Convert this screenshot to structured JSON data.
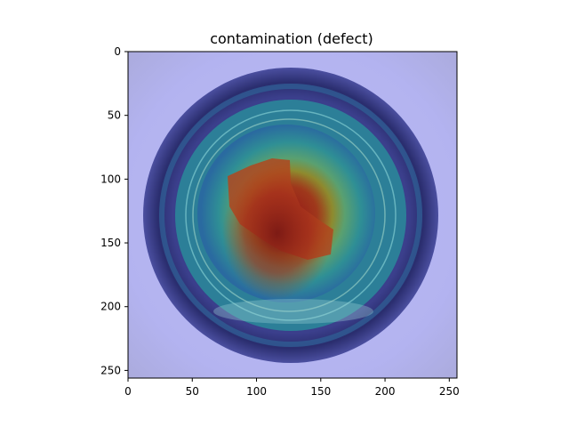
{
  "title": "contamination (defect)",
  "image": {
    "subject": "top view of a bottle with an anomaly heatmap overlay",
    "heatmap_colormap": "jet",
    "colors": {
      "background_lavender": "#b4b4f0",
      "bottle_ring_dark": "#33367a",
      "ring_teal": "#2f8f95",
      "inner_green": "#8fa63c",
      "hot_red": "#8e1f1a"
    }
  },
  "axes": {
    "x_ticks": [
      "0",
      "50",
      "100",
      "150",
      "200",
      "250"
    ],
    "y_ticks": [
      "0",
      "50",
      "100",
      "150",
      "200",
      "250"
    ],
    "xlim": [
      0,
      256
    ],
    "ylim": [
      256,
      0
    ]
  }
}
